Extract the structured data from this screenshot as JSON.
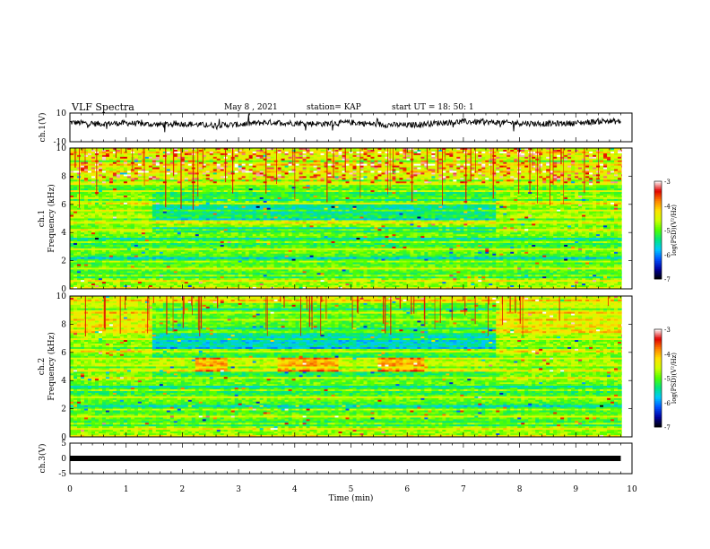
{
  "header": {
    "title": "VLF Spectra",
    "date": "May 8 , 2021",
    "station": "station= KAP",
    "start": "start UT = 18: 50: 1"
  },
  "colors": {
    "spectrum_stops": [
      "#000000",
      "#0000a0",
      "#0050ff",
      "#00c8ff",
      "#00e680",
      "#50ff00",
      "#d0ff00",
      "#ffe000",
      "#ff8000",
      "#e00000",
      "#ffffff"
    ],
    "trace": "#000000",
    "axes": "#000000"
  },
  "chart_data": [
    {
      "id": "ch1-waveform",
      "type": "line",
      "ylabel": "ch.1(V)",
      "ylim": [
        -10,
        10
      ],
      "yticks": [
        "10",
        "-10"
      ],
      "xlim": [
        0,
        10
      ],
      "description": "noisy waveform around ~3 V",
      "x": [
        0,
        0.5,
        1,
        1.5,
        2,
        2.5,
        3,
        3.5,
        4,
        4.5,
        5,
        5.5,
        6,
        6.5,
        7,
        7.5,
        8,
        8.5,
        9,
        9.5,
        9.8
      ],
      "y": [
        3.5,
        2.5,
        3,
        2,
        2.5,
        1.5,
        2,
        3.5,
        3,
        2.5,
        3.5,
        2,
        1.5,
        3,
        4,
        3.5,
        3,
        2.5,
        3,
        4.5,
        4
      ]
    },
    {
      "id": "ch1-spectrogram",
      "type": "heatmap",
      "ylabel": "ch.1\nFrequency (kHz)",
      "ylim": [
        0,
        10
      ],
      "yticks": [
        "0",
        "2",
        "4",
        "6",
        "8",
        "10"
      ],
      "xlim": [
        0,
        10
      ],
      "colorbar": {
        "label": "log(PSD)(V²/Hz)",
        "ticks": [
          "-3",
          "-4",
          "-5",
          "-6",
          "-7"
        ],
        "range": [
          -7,
          -3
        ]
      }
    },
    {
      "id": "ch2-spectrogram",
      "type": "heatmap",
      "ylabel": "ch.2\nFrequency (kHz)",
      "ylim": [
        0,
        10
      ],
      "yticks": [
        "0",
        "2",
        "4",
        "6",
        "8",
        "10"
      ],
      "xlim": [
        0,
        10
      ],
      "colorbar": {
        "label": "log(PSD)(V²/Hz)",
        "ticks": [
          "-3",
          "-4",
          "-5",
          "-6",
          "-7"
        ],
        "range": [
          -7,
          -3
        ]
      }
    },
    {
      "id": "ch3-waveform",
      "type": "line",
      "ylabel": "ch.3(V)",
      "ylim": [
        -5,
        5
      ],
      "yticks": [
        "5",
        "0",
        "-5"
      ],
      "xlim": [
        0,
        10
      ],
      "xlabel": "Time (min)",
      "xticks": [
        "0",
        "1",
        "2",
        "3",
        "4",
        "5",
        "6",
        "7",
        "8",
        "9",
        "10"
      ],
      "x": [
        0,
        9.8
      ],
      "y": [
        0,
        0
      ]
    }
  ]
}
